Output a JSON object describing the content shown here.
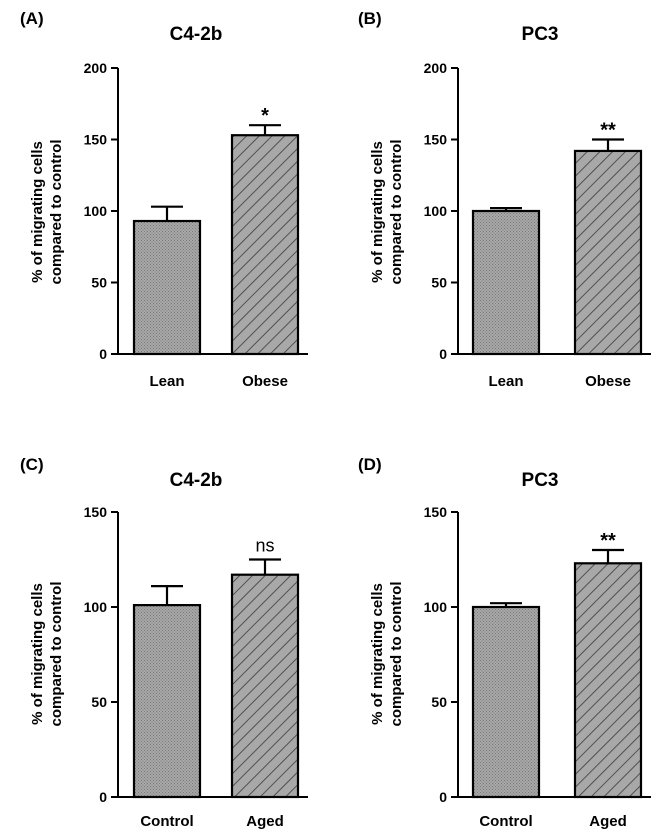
{
  "colors": {
    "bar_fill": "#a8a8a8",
    "stroke": "#000000",
    "background": "#ffffff"
  },
  "chart_data": [
    {
      "type": "bar",
      "panel": "(A)",
      "title": "C4-2b",
      "xlabel": "",
      "ylabel": [
        "% of migrating cells",
        "compared to control"
      ],
      "categories": [
        "Lean",
        "Obese"
      ],
      "values": [
        93,
        153
      ],
      "errors": [
        10,
        7
      ],
      "patterns": [
        "dots",
        "hatch"
      ],
      "annotations": [
        "",
        "*"
      ],
      "ylim": [
        0,
        200
      ],
      "yticks": [
        0,
        50,
        100,
        150,
        200
      ]
    },
    {
      "type": "bar",
      "panel": "(B)",
      "title": "PC3",
      "xlabel": "",
      "ylabel": [
        "% of migrating cells",
        "compared to control"
      ],
      "categories": [
        "Lean",
        "Obese"
      ],
      "values": [
        100,
        142
      ],
      "errors": [
        2,
        8
      ],
      "patterns": [
        "dots",
        "hatch"
      ],
      "annotations": [
        "",
        "**"
      ],
      "ylim": [
        0,
        200
      ],
      "yticks": [
        0,
        50,
        100,
        150,
        200
      ]
    },
    {
      "type": "bar",
      "panel": "(C)",
      "title": "C4-2b",
      "xlabel": "",
      "ylabel": [
        "% of migrating cells",
        "compared to control"
      ],
      "categories": [
        "Control",
        "Aged"
      ],
      "values": [
        101,
        117
      ],
      "errors": [
        10,
        8
      ],
      "patterns": [
        "dots",
        "hatch"
      ],
      "annotations": [
        "",
        "ns"
      ],
      "ylim": [
        0,
        150
      ],
      "yticks": [
        0,
        50,
        100,
        150
      ]
    },
    {
      "type": "bar",
      "panel": "(D)",
      "title": "PC3",
      "xlabel": "",
      "ylabel": [
        "% of migrating cells",
        "compared to control"
      ],
      "categories": [
        "Control",
        "Aged"
      ],
      "values": [
        100,
        123
      ],
      "errors": [
        2,
        7
      ],
      "patterns": [
        "dots",
        "hatch"
      ],
      "annotations": [
        "",
        "**"
      ],
      "ylim": [
        0,
        150
      ],
      "yticks": [
        0,
        50,
        100,
        150
      ]
    }
  ]
}
